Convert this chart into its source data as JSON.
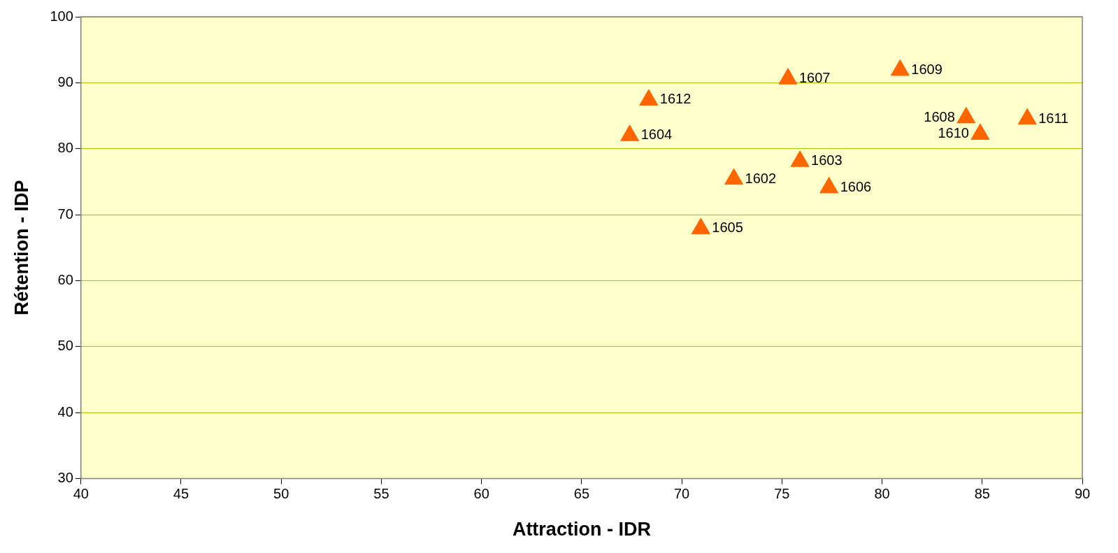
{
  "chart_data": {
    "type": "scatter",
    "xlabel": "Attraction - IDR",
    "ylabel": "Rétention - IDP",
    "x": [
      68.35,
      67.4,
      75.3,
      80.9,
      84.2,
      84.9,
      87.25,
      75.9,
      77.35,
      72.6,
      70.95
    ],
    "series": [
      {
        "color": "#ff6600",
        "values": [
          87.4,
          82,
          90.6,
          91.9,
          84.7,
          82.2,
          84.5,
          78.1,
          74.1,
          75.4,
          67.9
        ]
      }
    ],
    "xlim": [
      40,
      90
    ],
    "xticks": [
      40,
      45,
      50,
      55,
      60,
      65,
      70,
      75,
      80,
      85,
      90
    ],
    "ylim": [
      30,
      100
    ],
    "yticks": [
      30,
      40,
      50,
      60,
      70,
      80,
      90,
      100
    ],
    "grid": "y",
    "legend": false,
    "marker": "triangle",
    "annotations": [
      {
        "text": "1612",
        "x": 68.35,
        "y": 87.4
      },
      {
        "text": "1604",
        "x": 67.4,
        "y": 82
      },
      {
        "text": "1607",
        "x": 75.3,
        "y": 90.6
      },
      {
        "text": "1609",
        "x": 80.9,
        "y": 91.9
      },
      {
        "text": "1608",
        "x": 84.2,
        "y": 84.7
      },
      {
        "text": "1610",
        "x": 84.9,
        "y": 82.2
      },
      {
        "text": "1611",
        "x": 87.25,
        "y": 84.5
      },
      {
        "text": "1603",
        "x": 75.9,
        "y": 78.1
      },
      {
        "text": "1606",
        "x": 77.35,
        "y": 74.1
      },
      {
        "text": "1602",
        "x": 72.6,
        "y": 75.4
      },
      {
        "text": "1605",
        "x": 70.95,
        "y": 67.9
      }
    ]
  }
}
